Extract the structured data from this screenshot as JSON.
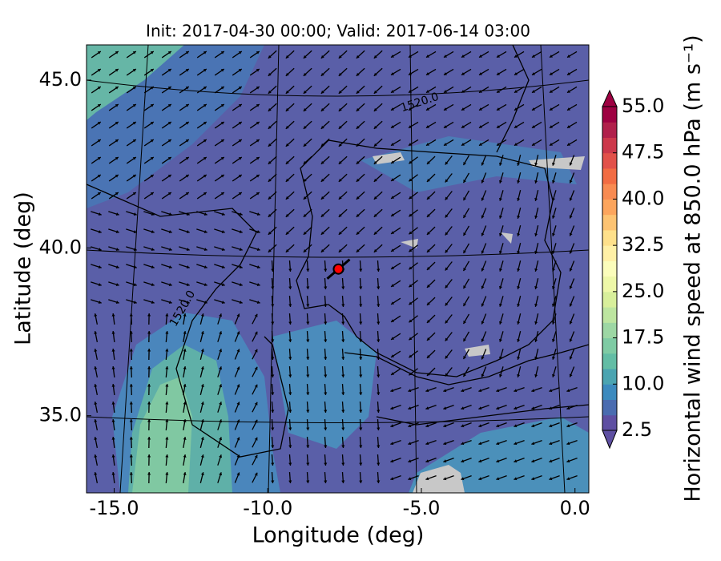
{
  "chart_data": {
    "type": "map",
    "title": "Init: 2017-04-30 00:00; Valid: 2017-06-14 03:00",
    "x_label": "Longitude (deg)",
    "y_label": "Latitude (deg)",
    "xlim": [
      -15.9,
      0.45
    ],
    "ylim": [
      32.7,
      46.05
    ],
    "xticks": [
      {
        "value": -15,
        "label": "-15.0"
      },
      {
        "value": -10,
        "label": "-10.0"
      },
      {
        "value": -5,
        "label": "-5.0"
      },
      {
        "value": 0,
        "label": "0.0"
      }
    ],
    "yticks": [
      {
        "value": 35,
        "label": "35.0"
      },
      {
        "value": 40,
        "label": "40.0"
      },
      {
        "value": 45,
        "label": "45.0"
      }
    ],
    "contour_labels": [
      "1520.0",
      "1520.0"
    ],
    "marker": {
      "lon": -7.7,
      "lat": 39.37,
      "color": "#ff0000"
    },
    "colorbar": {
      "label": "Horizontal wind speed at 850.0 hPa (m s⁻¹)",
      "lim": [
        2.5,
        55
      ],
      "ticks": [
        2.5,
        {
          "value": 10,
          "label": "10.0"
        },
        17.5,
        {
          "value": 25,
          "label": "25.0"
        },
        32.5,
        {
          "value": 40,
          "label": "40.0"
        },
        47.5,
        {
          "value": 55,
          "label": "55.0"
        }
      ],
      "colors": [
        "#5e4fa2",
        "#4a6cb0",
        "#3c8abe",
        "#4ba4b1",
        "#63bda5",
        "#7fcba4",
        "#9dd7a4",
        "#bde5a0",
        "#d8ef9b",
        "#eef8a8",
        "#fbfdbb",
        "#fff0a6",
        "#fee08b",
        "#fdc372",
        "#fca55d",
        "#f88b52",
        "#f26c43",
        "#e2514a",
        "#cc384b",
        "#b0204b",
        "#9e0142"
      ]
    }
  }
}
